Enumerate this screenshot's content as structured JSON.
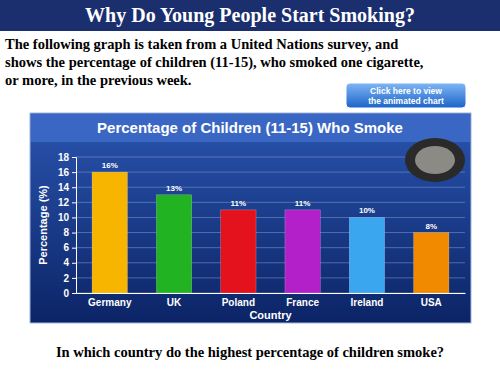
{
  "slide": {
    "title": "Why Do Young People Start Smoking?",
    "intro": [
      "The following graph is taken from a United Nations survey, and",
      "shows the percentage of children (11-15), who smoked one cigarette,",
      "or more, in the previous week."
    ],
    "button": [
      "Click here to view",
      "the animated chart"
    ],
    "question": "In which country do the highest percentage of children smoke?"
  },
  "chart_data": {
    "type": "bar",
    "title": "Percentage of Children (11-15) Who Smoke",
    "x_label": "Country",
    "y_label": "Percentage (%)",
    "categories": [
      "Germany",
      "UK",
      "Poland",
      "France",
      "Ireland",
      "USA"
    ],
    "values": [
      16,
      13,
      11,
      11,
      10,
      8
    ],
    "value_labels": [
      "16%",
      "13%",
      "11%",
      "11%",
      "10%",
      "8%"
    ],
    "colors": [
      "#f7b500",
      "#22b322",
      "#e3121c",
      "#b31fc8",
      "#3aa6f0",
      "#f28a00"
    ],
    "ylim": [
      0,
      18
    ],
    "yticks": [
      0,
      2,
      4,
      6,
      8,
      10,
      12,
      14,
      16,
      18
    ],
    "grid": true,
    "data_labels": true
  }
}
